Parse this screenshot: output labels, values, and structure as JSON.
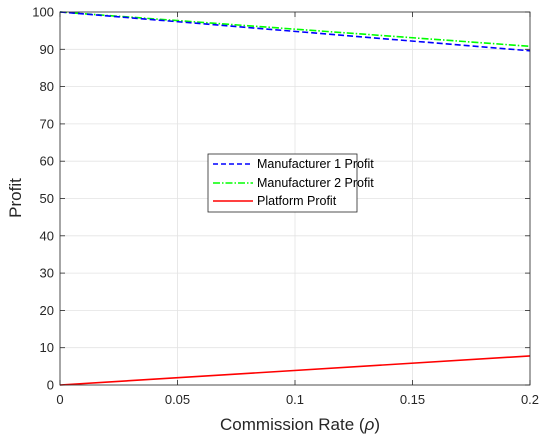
{
  "chart_data": {
    "type": "line",
    "title": "",
    "xlabel": "Commission Rate (",
    "xlabel_symbol": "ρ",
    "xlabel_suffix": ")",
    "ylabel": "Profit",
    "xlim": [
      0,
      0.2
    ],
    "ylim": [
      0,
      100
    ],
    "xticks": [
      0,
      0.05,
      0.1,
      0.15,
      0.2
    ],
    "xtick_labels": [
      "0",
      "0.05",
      "0.1",
      "0.15",
      "0.2"
    ],
    "yticks": [
      0,
      10,
      20,
      30,
      40,
      50,
      60,
      70,
      80,
      90,
      100
    ],
    "ytick_labels": [
      "0",
      "10",
      "20",
      "30",
      "40",
      "50",
      "60",
      "70",
      "80",
      "90",
      "100"
    ],
    "grid": true,
    "legend_position": "center",
    "x": [
      0,
      0.2
    ],
    "series": [
      {
        "name": "Manufacturer 1 Profit",
        "values": [
          100,
          89.6
        ],
        "color": "#0000ff",
        "style": "dashed"
      },
      {
        "name": "Manufacturer 2 Profit",
        "values": [
          100,
          90.8
        ],
        "color": "#00ff00",
        "style": "dashdot"
      },
      {
        "name": "Platform Profit",
        "values": [
          0,
          7.8
        ],
        "color": "#ff0000",
        "style": "solid"
      }
    ]
  }
}
